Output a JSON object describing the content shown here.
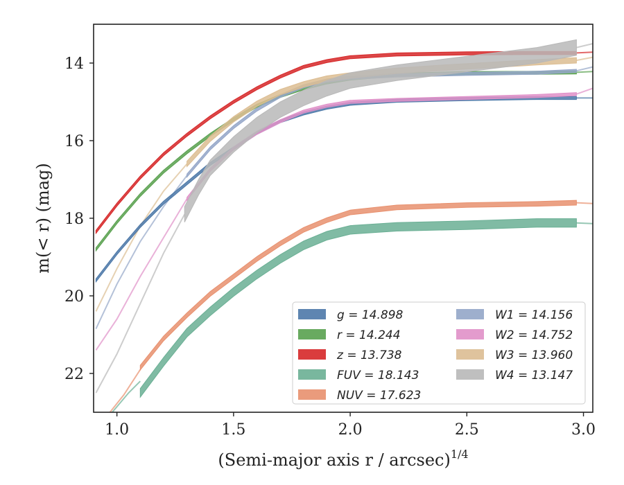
{
  "chart_data": {
    "type": "line",
    "xlabel_main": "(Semi-major axis r / arcsec)",
    "xlabel_sup": "1/4",
    "ylabel": "m(< r) (mag)",
    "xlim": [
      0.9,
      3.04
    ],
    "ylim": [
      23.0,
      13.0
    ],
    "y_inverted": true,
    "xticks": [
      {
        "value": 1.0,
        "label": "1.0"
      },
      {
        "value": 1.5,
        "label": "1.5"
      },
      {
        "value": 2.0,
        "label": "2.0"
      },
      {
        "value": 2.5,
        "label": "2.5"
      },
      {
        "value": 3.0,
        "label": "3.0"
      }
    ],
    "yticks": [
      {
        "value": 14,
        "label": "14"
      },
      {
        "value": 16,
        "label": "16"
      },
      {
        "value": 18,
        "label": "18"
      },
      {
        "value": 20,
        "label": "20"
      },
      {
        "value": 22,
        "label": "22"
      }
    ],
    "grid": false,
    "legend_placement": "lower-right",
    "series": [
      {
        "key": "g",
        "label": "g = 14.898",
        "color": "#4c78a8",
        "points": [
          [
            0.91,
            19.6
          ],
          [
            1.0,
            18.9
          ],
          [
            1.1,
            18.2
          ],
          [
            1.2,
            17.6
          ],
          [
            1.3,
            17.1
          ],
          [
            1.4,
            16.6
          ],
          [
            1.5,
            16.2
          ],
          [
            1.6,
            15.8
          ],
          [
            1.7,
            15.5
          ],
          [
            1.8,
            15.3
          ],
          [
            1.9,
            15.15
          ],
          [
            2.0,
            15.05
          ],
          [
            2.2,
            14.97
          ],
          [
            2.5,
            14.93
          ],
          [
            2.8,
            14.9
          ],
          [
            2.97,
            14.9
          ]
        ],
        "ext": [
          [
            2.97,
            14.9
          ],
          [
            3.04,
            14.9
          ]
        ],
        "band": 0.08
      },
      {
        "key": "r",
        "label": "r = 14.244",
        "color": "#59a14f",
        "points": [
          [
            0.91,
            18.8
          ],
          [
            1.0,
            18.1
          ],
          [
            1.1,
            17.4
          ],
          [
            1.2,
            16.8
          ],
          [
            1.3,
            16.3
          ],
          [
            1.4,
            15.85
          ],
          [
            1.5,
            15.45
          ],
          [
            1.6,
            15.1
          ],
          [
            1.7,
            14.85
          ],
          [
            1.8,
            14.65
          ],
          [
            1.9,
            14.5
          ],
          [
            2.0,
            14.4
          ],
          [
            2.2,
            14.3
          ],
          [
            2.5,
            14.26
          ],
          [
            2.8,
            14.25
          ],
          [
            2.97,
            14.24
          ]
        ],
        "ext": [
          [
            2.97,
            14.24
          ],
          [
            3.04,
            14.22
          ]
        ],
        "band": 0.08
      },
      {
        "key": "z",
        "label": "z = 13.738",
        "color": "#d62728",
        "points": [
          [
            0.91,
            18.35
          ],
          [
            1.0,
            17.65
          ],
          [
            1.1,
            16.95
          ],
          [
            1.2,
            16.35
          ],
          [
            1.3,
            15.85
          ],
          [
            1.4,
            15.4
          ],
          [
            1.5,
            15.0
          ],
          [
            1.6,
            14.65
          ],
          [
            1.7,
            14.35
          ],
          [
            1.8,
            14.1
          ],
          [
            1.9,
            13.95
          ],
          [
            2.0,
            13.85
          ],
          [
            2.2,
            13.78
          ],
          [
            2.5,
            13.75
          ],
          [
            2.8,
            13.74
          ],
          [
            2.97,
            13.74
          ]
        ],
        "ext": [
          [
            2.97,
            13.74
          ],
          [
            3.04,
            13.72
          ]
        ],
        "band": 0.08
      },
      {
        "key": "FUV",
        "label": "FUV = 18.143",
        "color": "#6aaf94",
        "points": [
          [
            1.1,
            22.5
          ],
          [
            1.2,
            21.7
          ],
          [
            1.3,
            20.95
          ],
          [
            1.4,
            20.4
          ],
          [
            1.5,
            19.9
          ],
          [
            1.6,
            19.45
          ],
          [
            1.7,
            19.05
          ],
          [
            1.8,
            18.7
          ],
          [
            1.9,
            18.45
          ],
          [
            2.0,
            18.3
          ],
          [
            2.2,
            18.22
          ],
          [
            2.5,
            18.18
          ],
          [
            2.8,
            18.12
          ],
          [
            2.97,
            18.12
          ]
        ],
        "ext": [
          [
            0.98,
            23.0
          ],
          [
            1.05,
            22.5
          ],
          [
            1.1,
            22.2
          ]
        ],
        "ext2": [
          [
            2.97,
            18.12
          ],
          [
            3.04,
            18.14
          ]
        ],
        "band": 0.22
      },
      {
        "key": "NUV",
        "label": "NUV = 17.623",
        "color": "#e8906e",
        "points": [
          [
            1.1,
            21.85
          ],
          [
            1.2,
            21.1
          ],
          [
            1.3,
            20.5
          ],
          [
            1.4,
            19.95
          ],
          [
            1.5,
            19.5
          ],
          [
            1.6,
            19.05
          ],
          [
            1.7,
            18.65
          ],
          [
            1.8,
            18.3
          ],
          [
            1.9,
            18.05
          ],
          [
            2.0,
            17.85
          ],
          [
            2.2,
            17.72
          ],
          [
            2.5,
            17.66
          ],
          [
            2.8,
            17.63
          ],
          [
            2.97,
            17.6
          ]
        ],
        "ext": [
          [
            0.97,
            23.0
          ],
          [
            1.03,
            22.55
          ],
          [
            1.1,
            21.9
          ]
        ],
        "ext2": [
          [
            2.97,
            17.6
          ],
          [
            3.04,
            17.62
          ]
        ],
        "band": 0.12
      },
      {
        "key": "W1",
        "label": "W1 = 14.156",
        "color": "#94a6c8",
        "points": [
          [
            1.3,
            16.9
          ],
          [
            1.4,
            16.2
          ],
          [
            1.5,
            15.65
          ],
          [
            1.6,
            15.2
          ],
          [
            1.7,
            14.85
          ],
          [
            1.8,
            14.6
          ],
          [
            1.9,
            14.45
          ],
          [
            2.0,
            14.38
          ],
          [
            2.2,
            14.32
          ],
          [
            2.5,
            14.28
          ],
          [
            2.8,
            14.25
          ],
          [
            2.97,
            14.2
          ]
        ],
        "ext": [
          [
            0.91,
            20.85
          ],
          [
            1.0,
            19.7
          ],
          [
            1.1,
            18.6
          ],
          [
            1.2,
            17.7
          ],
          [
            1.3,
            16.9
          ]
        ],
        "ext2": [
          [
            2.97,
            14.2
          ],
          [
            3.04,
            14.1
          ]
        ],
        "band": 0.08
      },
      {
        "key": "W2",
        "label": "W2 = 14.752",
        "color": "#e090c8",
        "points": [
          [
            1.3,
            17.5
          ],
          [
            1.4,
            16.75
          ],
          [
            1.5,
            16.2
          ],
          [
            1.6,
            15.8
          ],
          [
            1.7,
            15.5
          ],
          [
            1.8,
            15.25
          ],
          [
            1.9,
            15.1
          ],
          [
            2.0,
            15.0
          ],
          [
            2.2,
            14.95
          ],
          [
            2.5,
            14.9
          ],
          [
            2.8,
            14.85
          ],
          [
            2.97,
            14.8
          ]
        ],
        "ext": [
          [
            0.91,
            21.4
          ],
          [
            1.0,
            20.6
          ],
          [
            1.1,
            19.5
          ],
          [
            1.2,
            18.5
          ],
          [
            1.3,
            17.5
          ]
        ],
        "ext2": [
          [
            2.97,
            14.8
          ],
          [
            3.04,
            14.65
          ]
        ],
        "band": 0.08
      },
      {
        "key": "W3",
        "label": "W3 = 13.960",
        "color": "#dcbd92",
        "points": [
          [
            1.3,
            16.6
          ],
          [
            1.4,
            15.95
          ],
          [
            1.5,
            15.45
          ],
          [
            1.6,
            15.05
          ],
          [
            1.7,
            14.75
          ],
          [
            1.8,
            14.55
          ],
          [
            1.9,
            14.4
          ],
          [
            2.0,
            14.32
          ],
          [
            2.2,
            14.2
          ],
          [
            2.4,
            14.12
          ],
          [
            2.6,
            14.05
          ],
          [
            2.8,
            13.98
          ],
          [
            2.97,
            13.93
          ]
        ],
        "ext": [
          [
            0.91,
            20.4
          ],
          [
            1.0,
            19.3
          ],
          [
            1.1,
            18.2
          ],
          [
            1.2,
            17.3
          ],
          [
            1.3,
            16.6
          ]
        ],
        "ext2": [
          [
            2.97,
            13.93
          ],
          [
            3.04,
            13.85
          ]
        ],
        "band": 0.14
      },
      {
        "key": "W4",
        "label": "W4 = 13.147",
        "color": "#b8b8b8",
        "points": [
          [
            1.29,
            17.9
          ],
          [
            1.35,
            17.2
          ],
          [
            1.4,
            16.7
          ],
          [
            1.5,
            16.1
          ],
          [
            1.6,
            15.6
          ],
          [
            1.7,
            15.2
          ],
          [
            1.8,
            14.9
          ],
          [
            1.9,
            14.65
          ],
          [
            2.0,
            14.45
          ],
          [
            2.2,
            14.25
          ],
          [
            2.4,
            14.1
          ],
          [
            2.6,
            13.95
          ],
          [
            2.8,
            13.8
          ],
          [
            2.97,
            13.6
          ]
        ],
        "ext": [
          [
            0.91,
            22.5
          ],
          [
            1.0,
            21.5
          ],
          [
            1.1,
            20.2
          ],
          [
            1.2,
            18.9
          ],
          [
            1.29,
            17.9
          ]
        ],
        "ext2": [
          [
            2.97,
            13.6
          ],
          [
            3.04,
            13.5
          ]
        ],
        "band": 0.4
      }
    ],
    "legend_columns": [
      [
        "g",
        "r",
        "z",
        "FUV",
        "NUV"
      ],
      [
        "W1",
        "W2",
        "W3",
        "W4"
      ]
    ]
  }
}
